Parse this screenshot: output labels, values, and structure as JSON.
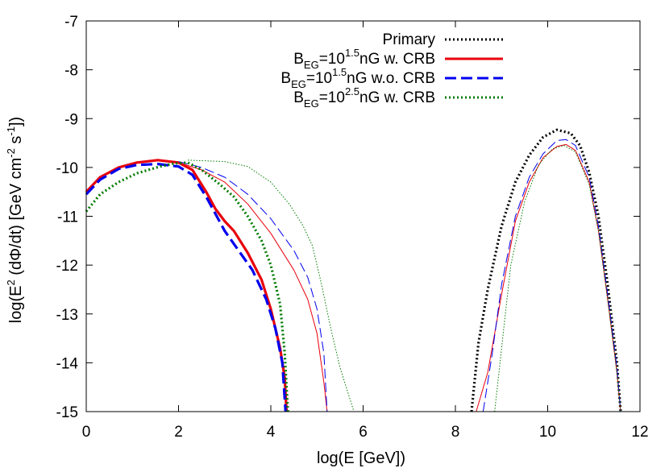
{
  "chart_data": {
    "type": "line",
    "xlabel": "log(E [GeV])",
    "ylabel": "log(E^2 (dΦ/dt) [GeV cm^-2 s^-1])",
    "xlim": [
      0,
      12
    ],
    "ylim": [
      -15,
      -7
    ],
    "xticks": [
      "0",
      "2",
      "4",
      "6",
      "8",
      "10",
      "12"
    ],
    "yticks": [
      "-15",
      "-14",
      "-13",
      "-12",
      "-11",
      "-10",
      "-9",
      "-8",
      "-7"
    ],
    "grid": false,
    "legend_position": "top-right",
    "series": [
      {
        "name": "Primary",
        "color": "#000000",
        "style": "dotted",
        "segments": [
          [
            [
              8.35,
              -15
            ],
            [
              8.5,
              -13.6
            ],
            [
              8.7,
              -12.5
            ],
            [
              9.0,
              -11.2
            ],
            [
              9.3,
              -10.3
            ],
            [
              9.6,
              -9.75
            ],
            [
              9.9,
              -9.38
            ],
            [
              10.2,
              -9.23
            ],
            [
              10.5,
              -9.3
            ],
            [
              10.7,
              -9.55
            ],
            [
              10.9,
              -10.1
            ],
            [
              11.1,
              -11.0
            ],
            [
              11.3,
              -12.4
            ],
            [
              11.5,
              -14.0
            ],
            [
              11.58,
              -15
            ]
          ]
        ]
      },
      {
        "name": "B_EG=10^1.5nG w. CRB",
        "color": "#e8000b",
        "style": "solid",
        "segments": [
          [
            [
              0,
              -10.5
            ],
            [
              0.3,
              -10.2
            ],
            [
              0.7,
              -10.0
            ],
            [
              1.1,
              -9.9
            ],
            [
              1.55,
              -9.85
            ],
            [
              2.0,
              -9.9
            ],
            [
              2.3,
              -10.05
            ],
            [
              2.6,
              -10.5
            ],
            [
              2.8,
              -10.85
            ],
            [
              3.0,
              -11.1
            ],
            [
              3.2,
              -11.3
            ],
            [
              3.5,
              -11.75
            ],
            [
              3.8,
              -12.3
            ],
            [
              4.0,
              -12.9
            ],
            [
              4.2,
              -13.7
            ],
            [
              4.3,
              -14.3
            ],
            [
              4.34,
              -15
            ]
          ],
          [
            [
              2.0,
              -9.9
            ],
            [
              2.5,
              -10.05
            ],
            [
              3.0,
              -10.3
            ],
            [
              3.5,
              -10.75
            ],
            [
              4.0,
              -11.35
            ],
            [
              4.5,
              -12.1
            ],
            [
              4.8,
              -12.7
            ],
            [
              5.0,
              -13.4
            ],
            [
              5.15,
              -14.4
            ],
            [
              5.22,
              -15
            ]
          ],
          [
            [
              8.45,
              -15
            ],
            [
              8.7,
              -14.2
            ],
            [
              9.0,
              -12.6
            ],
            [
              9.3,
              -11.1
            ],
            [
              9.6,
              -10.3
            ],
            [
              9.9,
              -9.8
            ],
            [
              10.2,
              -9.57
            ],
            [
              10.4,
              -9.53
            ],
            [
              10.6,
              -9.65
            ],
            [
              10.9,
              -10.3
            ],
            [
              11.1,
              -11.3
            ],
            [
              11.3,
              -12.7
            ],
            [
              11.5,
              -14.2
            ],
            [
              11.58,
              -15
            ]
          ]
        ]
      },
      {
        "name": "B_EG=10^1.5nG w.o. CRB",
        "color": "#0000ee",
        "style": "dashed",
        "segments": [
          [
            [
              0,
              -10.55
            ],
            [
              0.3,
              -10.25
            ],
            [
              0.7,
              -10.03
            ],
            [
              1.1,
              -9.95
            ],
            [
              1.55,
              -9.93
            ],
            [
              2.0,
              -9.98
            ],
            [
              2.3,
              -10.15
            ],
            [
              2.6,
              -10.6
            ],
            [
              2.8,
              -10.95
            ],
            [
              3.0,
              -11.3
            ],
            [
              3.3,
              -11.7
            ],
            [
              3.6,
              -12.1
            ],
            [
              3.9,
              -12.7
            ],
            [
              4.1,
              -13.3
            ],
            [
              4.25,
              -14.0
            ],
            [
              4.32,
              -15
            ]
          ],
          [
            [
              2.0,
              -9.88
            ],
            [
              2.5,
              -10.0
            ],
            [
              3.0,
              -10.2
            ],
            [
              3.5,
              -10.55
            ],
            [
              4.0,
              -11.05
            ],
            [
              4.5,
              -11.7
            ],
            [
              4.8,
              -12.25
            ],
            [
              5.0,
              -12.9
            ],
            [
              5.15,
              -13.8
            ],
            [
              5.22,
              -15
            ]
          ],
          [
            [
              8.6,
              -15
            ],
            [
              8.8,
              -13.8
            ],
            [
              9.0,
              -12.4
            ],
            [
              9.3,
              -11.0
            ],
            [
              9.6,
              -10.2
            ],
            [
              9.9,
              -9.72
            ],
            [
              10.2,
              -9.45
            ],
            [
              10.4,
              -9.43
            ],
            [
              10.6,
              -9.55
            ],
            [
              10.9,
              -10.2
            ],
            [
              11.1,
              -11.2
            ],
            [
              11.3,
              -12.6
            ],
            [
              11.5,
              -14.1
            ],
            [
              11.58,
              -15
            ]
          ]
        ]
      },
      {
        "name": "B_EG=10^2.5nG w. CRB",
        "color": "#007b00",
        "style": "dotted",
        "segments": [
          [
            [
              0,
              -10.9
            ],
            [
              0.3,
              -10.55
            ],
            [
              0.7,
              -10.3
            ],
            [
              1.1,
              -10.12
            ],
            [
              1.6,
              -9.98
            ],
            [
              1.9,
              -9.92
            ],
            [
              2.2,
              -9.9
            ],
            [
              2.5,
              -10.05
            ],
            [
              2.9,
              -10.35
            ],
            [
              3.2,
              -10.6
            ],
            [
              3.5,
              -11.0
            ],
            [
              3.8,
              -11.5
            ],
            [
              4.0,
              -12.0
            ],
            [
              4.2,
              -12.8
            ],
            [
              4.3,
              -13.8
            ],
            [
              4.37,
              -15
            ]
          ],
          [
            [
              2.2,
              -9.85
            ],
            [
              3.0,
              -9.88
            ],
            [
              3.5,
              -9.98
            ],
            [
              4.0,
              -10.3
            ],
            [
              4.4,
              -10.75
            ],
            [
              4.7,
              -11.2
            ],
            [
              4.9,
              -11.6
            ],
            [
              5.1,
              -12.4
            ],
            [
              5.3,
              -13.3
            ],
            [
              5.5,
              -14.1
            ],
            [
              5.8,
              -15
            ]
          ],
          [
            [
              8.85,
              -15
            ],
            [
              9.0,
              -13.7
            ],
            [
              9.2,
              -12.0
            ],
            [
              9.5,
              -10.7
            ],
            [
              9.8,
              -9.95
            ],
            [
              10.1,
              -9.62
            ],
            [
              10.35,
              -9.55
            ],
            [
              10.6,
              -9.68
            ],
            [
              10.9,
              -10.35
            ],
            [
              11.1,
              -11.3
            ],
            [
              11.3,
              -12.7
            ],
            [
              11.5,
              -14.2
            ],
            [
              11.58,
              -15
            ]
          ]
        ]
      }
    ]
  },
  "legend": {
    "entries": [
      {
        "base": "Primary",
        "sub": "",
        "sup": "",
        "rest": ""
      },
      {
        "base": "B",
        "sub": "EG",
        "mid": "=10",
        "sup": "1.5",
        "rest": "nG w. CRB"
      },
      {
        "base": "B",
        "sub": "EG",
        "mid": "=10",
        "sup": "1.5",
        "rest": "nG w.o. CRB"
      },
      {
        "base": "B",
        "sub": "EG",
        "mid": "=10",
        "sup": "2.5",
        "rest": "nG w. CRB"
      }
    ]
  }
}
